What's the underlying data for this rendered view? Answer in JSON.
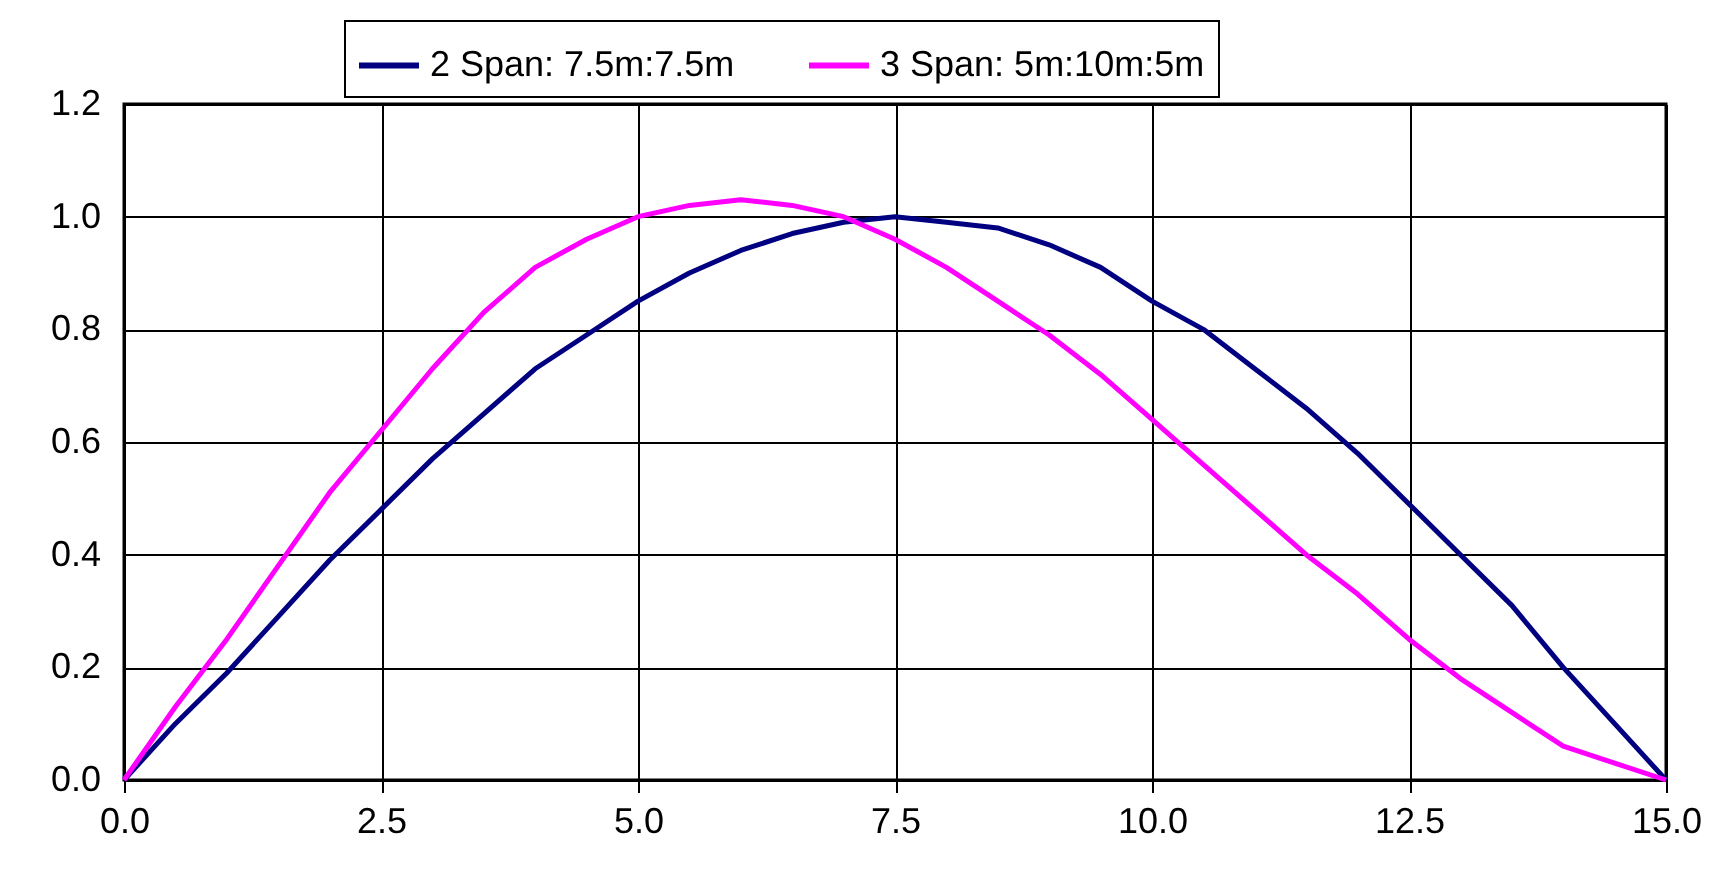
{
  "chart_data": {
    "type": "line",
    "legend": "top",
    "grid": true,
    "x": [
      0,
      0.5,
      1,
      1.5,
      2,
      2.5,
      3,
      3.5,
      4,
      4.5,
      5,
      5.5,
      6,
      6.5,
      7,
      7.5,
      8,
      8.5,
      9,
      9.5,
      10,
      10.5,
      11,
      11.5,
      12,
      12.5,
      13,
      13.5,
      14,
      14.5,
      15
    ],
    "series": [
      {
        "name": "2 Span: 7.5m:7.5m",
        "color": "#000080",
        "values": [
          0,
          0.1,
          0.19,
          0.29,
          0.39,
          0.48,
          0.57,
          0.65,
          0.73,
          0.79,
          0.85,
          0.9,
          0.94,
          0.97,
          0.99,
          1.0,
          0.99,
          0.98,
          0.95,
          0.91,
          0.85,
          0.8,
          0.73,
          0.66,
          0.58,
          0.49,
          0.4,
          0.31,
          0.2,
          0.1,
          0
        ]
      },
      {
        "name": "3 Span: 5m:10m:5m",
        "color": "#ff00ff",
        "values": [
          0,
          0.13,
          0.25,
          0.38,
          0.51,
          0.62,
          0.73,
          0.83,
          0.91,
          0.96,
          1.0,
          1.02,
          1.03,
          1.02,
          1.0,
          0.96,
          0.91,
          0.85,
          0.79,
          0.72,
          0.64,
          0.56,
          0.48,
          0.4,
          0.33,
          0.25,
          0.18,
          0.12,
          0.06,
          0.03,
          0
        ]
      }
    ],
    "xlim": [
      0,
      15
    ],
    "xticks": [
      {
        "value": 0,
        "label": "0.0"
      },
      2.5,
      {
        "value": 5,
        "label": "5.0"
      },
      7.5,
      {
        "value": 10,
        "label": "10.0"
      },
      12.5,
      {
        "value": 15,
        "label": "15.0"
      }
    ],
    "ylim": [
      0,
      1.2
    ],
    "yticks": [
      {
        "value": 0,
        "label": "0.0"
      },
      0.2,
      0.4,
      0.6,
      0.8,
      {
        "value": 1,
        "label": "1.0"
      },
      1.2
    ]
  }
}
